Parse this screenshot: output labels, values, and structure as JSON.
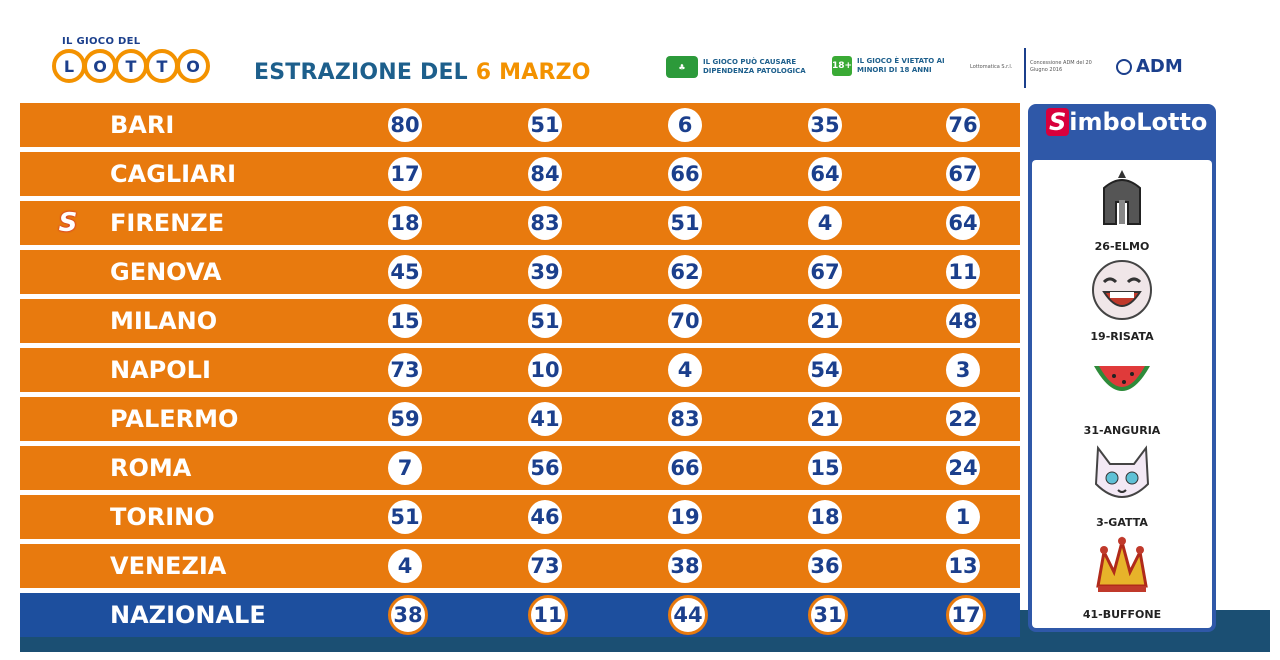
{
  "header": {
    "logo_top": "IL GIOCO DEL",
    "logo_letters": [
      "L",
      "O",
      "T",
      "T",
      "O"
    ],
    "title_prefix": "ESTRAZIONE DEL",
    "title_date": "6 MARZO",
    "warning_1": "IL GIOCO PUÒ CAUSARE DIPENDENZA PATOLOGICA",
    "warning_2": "IL GIOCO È VIETATO AI MINORI DI 18 ANNI",
    "age_badge": "18+",
    "operator": "Lottomatica S.r.l.",
    "concession": "Concessione ADM del 20 Giugno 2016",
    "adm": "ADM"
  },
  "wheels": [
    {
      "city": "BARI",
      "numbers": [
        "80",
        "51",
        "6",
        "35",
        "76"
      ]
    },
    {
      "city": "CAGLIARI",
      "numbers": [
        "17",
        "84",
        "66",
        "64",
        "67"
      ]
    },
    {
      "city": "FIRENZE",
      "numbers": [
        "18",
        "83",
        "51",
        "4",
        "64"
      ]
    },
    {
      "city": "GENOVA",
      "numbers": [
        "45",
        "39",
        "62",
        "67",
        "11"
      ]
    },
    {
      "city": "MILANO",
      "numbers": [
        "15",
        "51",
        "70",
        "21",
        "48"
      ]
    },
    {
      "city": "NAPOLI",
      "numbers": [
        "73",
        "10",
        "4",
        "54",
        "3"
      ]
    },
    {
      "city": "PALERMO",
      "numbers": [
        "59",
        "41",
        "83",
        "21",
        "22"
      ]
    },
    {
      "city": "ROMA",
      "numbers": [
        "7",
        "56",
        "66",
        "15",
        "24"
      ]
    },
    {
      "city": "TORINO",
      "numbers": [
        "51",
        "46",
        "19",
        "18",
        "1"
      ]
    },
    {
      "city": "VENEZIA",
      "numbers": [
        "4",
        "73",
        "38",
        "36",
        "13"
      ]
    },
    {
      "city": "NAZIONALE",
      "numbers": [
        "38",
        "11",
        "44",
        "31",
        "17"
      ]
    }
  ],
  "simbolotto_badge_city": "FIRENZE",
  "simbolotto": {
    "logo_s": "S",
    "logo_rest": "imboLotto",
    "symbols": [
      {
        "label": "26-ELMO",
        "icon": "helmet-icon"
      },
      {
        "label": "19-RISATA",
        "icon": "laughing-face-icon"
      },
      {
        "label": "31-ANGURIA",
        "icon": "watermelon-icon"
      },
      {
        "label": "3-GATTA",
        "icon": "cat-icon"
      },
      {
        "label": "41-BUFFONE",
        "icon": "jester-hat-icon"
      }
    ]
  },
  "colors": {
    "orange": "#e87a0e",
    "blue": "#1d4f9e",
    "navy": "#1b3f8c",
    "bottom": "#1b4f73"
  }
}
